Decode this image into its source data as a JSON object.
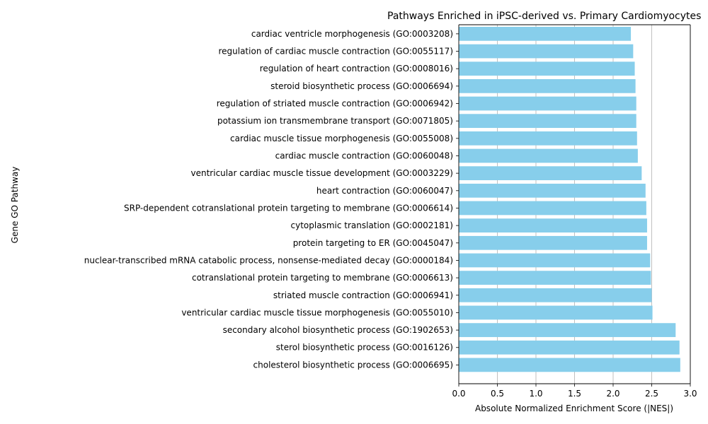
{
  "chart_data": {
    "type": "bar",
    "orientation": "horizontal",
    "title": "Pathways Enriched in iPSC-derived vs. Primary Cardiomyocytes",
    "xlabel": "Absolute Normalized Enrichment Score (|NES|)",
    "ylabel": "Gene GO Pathway",
    "xlim": [
      0,
      3.0
    ],
    "xticks": [
      "0.0",
      "0.5",
      "1.0",
      "1.5",
      "2.0",
      "2.5",
      "3.0"
    ],
    "grid": "x-major",
    "bar_color": "#87ceeb",
    "categories": [
      "cholesterol biosynthetic process (GO:0006695)",
      "sterol biosynthetic process (GO:0016126)",
      "secondary alcohol biosynthetic process (GO:1902653)",
      "ventricular cardiac muscle tissue morphogenesis (GO:0055010)",
      "striated muscle contraction (GO:0006941)",
      "cotranslational protein targeting to membrane (GO:0006613)",
      "nuclear-transcribed mRNA catabolic process, nonsense-mediated decay (GO:0000184)",
      "protein targeting to ER (GO:0045047)",
      "cytoplasmic translation (GO:0002181)",
      "SRP-dependent cotranslational protein targeting to membrane (GO:0006614)",
      "heart contraction (GO:0060047)",
      "ventricular cardiac muscle tissue development (GO:0003229)",
      "cardiac muscle contraction (GO:0060048)",
      "cardiac muscle tissue morphogenesis (GO:0055008)",
      "potassium ion transmembrane transport (GO:0071805)",
      "regulation of striated muscle contraction (GO:0006942)",
      "steroid biosynthetic process (GO:0006694)",
      "regulation of heart contraction (GO:0008016)",
      "regulation of cardiac muscle contraction (GO:0055117)",
      "cardiac ventricle morphogenesis (GO:0003208)"
    ],
    "values": [
      2.87,
      2.86,
      2.81,
      2.51,
      2.5,
      2.49,
      2.48,
      2.44,
      2.44,
      2.43,
      2.42,
      2.37,
      2.32,
      2.31,
      2.3,
      2.3,
      2.29,
      2.28,
      2.26,
      2.23
    ]
  }
}
